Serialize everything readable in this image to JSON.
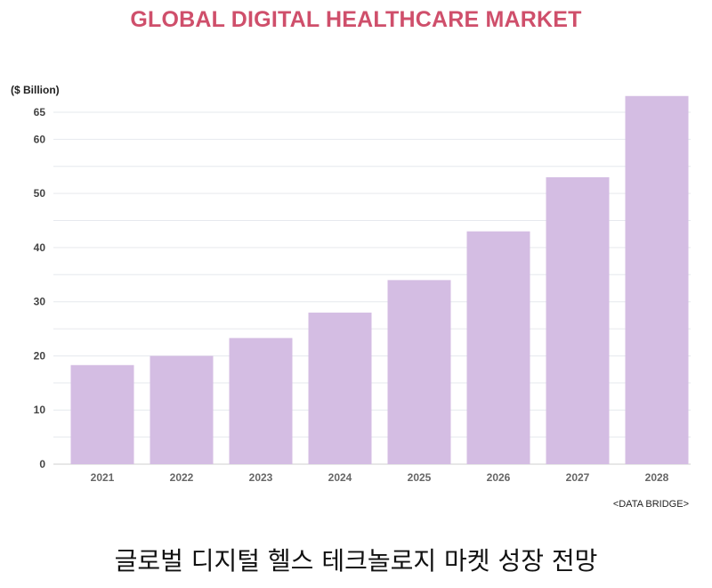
{
  "chart_data": {
    "type": "bar",
    "title": "GLOBAL DIGITAL HEALTHCARE MARKET",
    "ylabel": "($ Billion)",
    "xlabel": "",
    "categories": [
      "2021",
      "2022",
      "2023",
      "2024",
      "2025",
      "2026",
      "2027",
      "2028"
    ],
    "values": [
      18.3,
      20,
      23.3,
      28,
      34,
      43,
      53,
      68
    ],
    "ylim": [
      0,
      70
    ],
    "yticks": [
      0,
      10,
      20,
      30,
      40,
      50,
      60,
      65
    ],
    "grid": true,
    "bar_color": "#d4bde3",
    "title_color": "#cf4f6b"
  },
  "source": "<DATA BRIDGE>",
  "caption": "글로벌 디지털 헬스 테크놀로지 마켓 성장 전망"
}
